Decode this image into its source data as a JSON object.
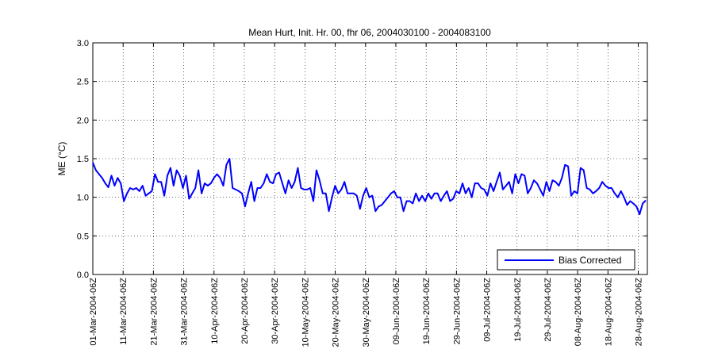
{
  "chart_data": {
    "type": "line",
    "title": "Mean Hurt, Init. Hr. 00, fhr 06, 2004030100 - 2004083100",
    "xlabel": "",
    "ylabel": "ME (°C)",
    "ylim": [
      0,
      3
    ],
    "yticks": [
      "0.0",
      "0.5",
      "1.0",
      "1.5",
      "2.0",
      "2.5",
      "3.0"
    ],
    "xticks": [
      "01-Mar-2004-06Z",
      "11-Mar-2004-06Z",
      "21-Mar-2004-06Z",
      "31-Mar-2004-06Z",
      "10-Apr-2004-06Z",
      "20-Apr-2004-06Z",
      "30-Apr-2004-06Z",
      "10-May-2004-06Z",
      "20-May-2004-06Z",
      "30-May-2004-06Z",
      "09-Jun-2004-06Z",
      "19-Jun-2004-06Z",
      "29-Jun-2004-06Z",
      "09-Jul-2004-06Z",
      "19-Jul-2004-06Z",
      "29-Jul-2004-06Z",
      "08-Aug-2004-06Z",
      "18-Aug-2004-06Z",
      "28-Aug-2004-06Z"
    ],
    "grid": true,
    "legend_position": "bottom-right",
    "series": [
      {
        "name": "Bias Corrected",
        "color": "#0000ff",
        "x_start_day": 0,
        "x_step_day": 1,
        "values": [
          1.45,
          1.35,
          1.3,
          1.25,
          1.18,
          1.13,
          1.28,
          1.15,
          1.25,
          1.18,
          0.95,
          1.05,
          1.12,
          1.1,
          1.12,
          1.08,
          1.15,
          1.02,
          1.05,
          1.08,
          1.3,
          1.2,
          1.2,
          1.02,
          1.28,
          1.38,
          1.15,
          1.35,
          1.28,
          1.12,
          1.28,
          0.98,
          1.05,
          1.12,
          1.35,
          1.05,
          1.18,
          1.15,
          1.18,
          1.25,
          1.3,
          1.25,
          1.15,
          1.42,
          1.5,
          1.12,
          1.1,
          1.08,
          1.05,
          0.88,
          1.05,
          1.2,
          0.95,
          1.12,
          1.12,
          1.18,
          1.3,
          1.2,
          1.18,
          1.3,
          1.32,
          1.18,
          1.05,
          1.22,
          1.12,
          1.2,
          1.38,
          1.12,
          1.1,
          1.1,
          1.12,
          0.95,
          1.35,
          1.22,
          1.05,
          1.05,
          0.82,
          1.0,
          1.15,
          1.05,
          1.1,
          1.2,
          1.05,
          1.05,
          1.05,
          1.02,
          0.85,
          1.02,
          1.12,
          1.0,
          1.02,
          0.82,
          0.88,
          0.9,
          0.95,
          1.0,
          1.05,
          1.08,
          1.0,
          1.0,
          0.82,
          0.95,
          0.95,
          0.92,
          1.05,
          0.95,
          1.02,
          0.95,
          1.05,
          0.98,
          1.05,
          1.05,
          0.95,
          1.02,
          1.08,
          0.95,
          0.98,
          1.08,
          1.05,
          1.18,
          1.05,
          1.12,
          1.0,
          1.18,
          1.18,
          1.12,
          1.1,
          1.02,
          1.18,
          1.08,
          1.2,
          1.32,
          1.1,
          1.15,
          1.2,
          1.05,
          1.3,
          1.18,
          1.3,
          1.28,
          1.05,
          1.12,
          1.22,
          1.18,
          1.1,
          1.02,
          1.2,
          1.08,
          1.22,
          1.2,
          1.15,
          1.25,
          1.42,
          1.4,
          1.02,
          1.08,
          1.05,
          1.38,
          1.35,
          1.12,
          1.1,
          1.05,
          1.08,
          1.12,
          1.2,
          1.15,
          1.12,
          1.12,
          1.05,
          1.0,
          1.08,
          1.0,
          0.9,
          0.95,
          0.92,
          0.88,
          0.78,
          0.92,
          0.96
        ]
      }
    ]
  }
}
